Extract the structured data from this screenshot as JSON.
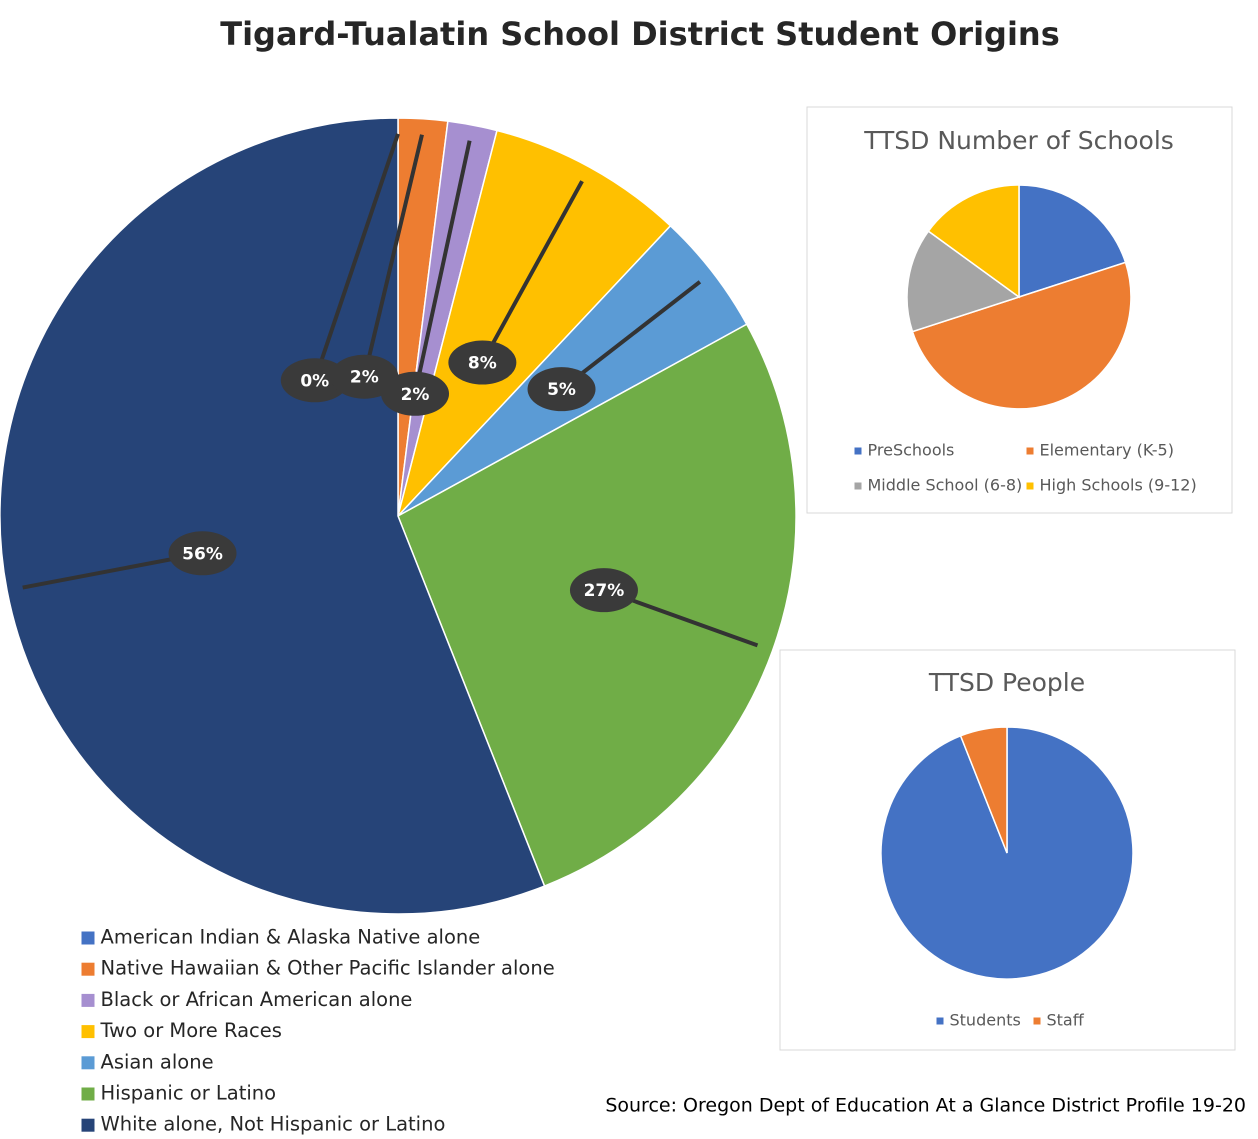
{
  "chart_data": [
    {
      "type": "pie",
      "title": "Tigard-Tualatin School District Student Origins",
      "categories": [
        "American Indian & Alaska Native alone",
        "Native Hawaiian & Other Pacific Islander alone",
        "Black or African American alone",
        "Two or More Races",
        "Asian alone",
        "Hispanic or Latino",
        "White alone, Not Hispanic or Latino"
      ],
      "values": [
        0,
        2,
        2,
        8,
        5,
        27,
        56
      ],
      "value_labels": [
        "0%",
        "2%",
        "2%",
        "8%",
        "5%",
        "27%",
        "56%"
      ],
      "colors": [
        "#4472c4",
        "#ed7d31",
        "#a68fd0",
        "#ffc000",
        "#5b9bd5",
        "#70ad47",
        "#264478"
      ],
      "legend": "bottom-left"
    },
    {
      "type": "pie",
      "title": "TTSD Number of Schools",
      "categories": [
        "PreSchools",
        "Elementary (K-5)",
        "Middle School (6-8)",
        "High Schools (9-12)"
      ],
      "values": [
        4,
        10,
        3,
        3
      ],
      "colors": [
        "#4472c4",
        "#ed7d31",
        "#a5a5a5",
        "#ffc000"
      ],
      "legend": "bottom"
    },
    {
      "type": "pie",
      "title": "TTSD  People",
      "categories": [
        "Students",
        "Staff"
      ],
      "values": [
        94,
        6
      ],
      "colors": [
        "#4472c4",
        "#ed7d31"
      ],
      "legend": "bottom"
    }
  ],
  "source": "Source: Oregon Dept of Education At a Glance District Profile 19-20"
}
